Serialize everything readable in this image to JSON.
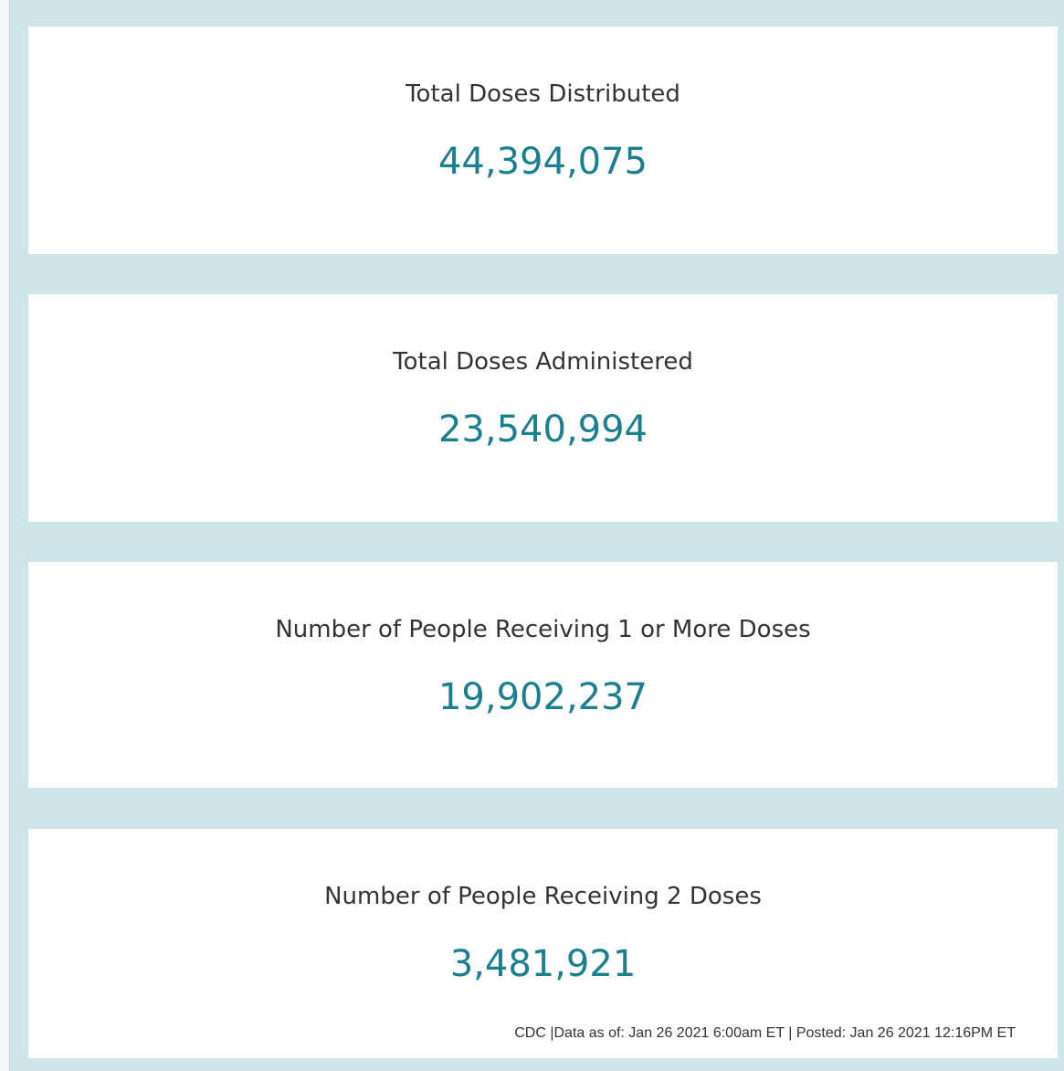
{
  "cards": [
    {
      "label": "Total Doses Distributed",
      "value": "44,394,075"
    },
    {
      "label": "Total Doses Administered",
      "value": "23,540,994"
    },
    {
      "label": "Number of People Receiving 1 or More Doses",
      "value": "19,902,237"
    },
    {
      "label": "Number of People Receiving 2 Doses",
      "value": "3,481,921"
    }
  ],
  "footer": "CDC |Data as of: Jan 26 2021 6:00am ET | Posted: Jan 26 2021 12:16PM ET"
}
